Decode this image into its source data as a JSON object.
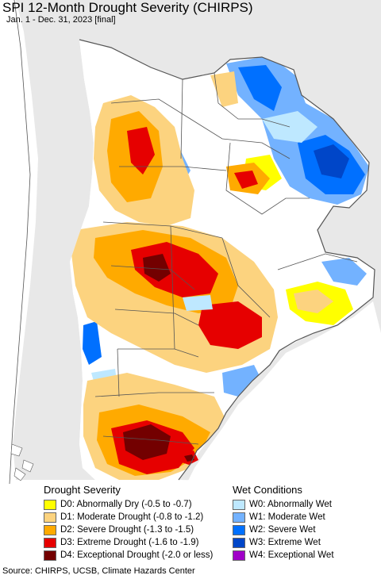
{
  "title": "SPI 12-Month Drought Severity (CHIRPS)",
  "subtitle": "Jan. 1 - Dec. 31, 2023 [final]",
  "legend": {
    "drought": {
      "heading": "Drought Severity",
      "items": [
        {
          "label": "D0: Abnormally Dry (-0.5 to -0.7)",
          "color": "#ffff00"
        },
        {
          "label": "D1: Moderate Drought (-0.8 to -1.2)",
          "color": "#fcd37f"
        },
        {
          "label": "D2: Severe Drought (-1.3 to -1.5)",
          "color": "#ffaa00"
        },
        {
          "label": "D3: Extreme Drought (-1.6 to -1.9)",
          "color": "#e60000"
        },
        {
          "label": "D4: Exceptional Drought (-2.0 or less)",
          "color": "#730000"
        }
      ]
    },
    "wet": {
      "heading": "Wet Conditions",
      "items": [
        {
          "label": "W0: Abnormally Wet",
          "color": "#bee8ff"
        },
        {
          "label": "W1: Moderate Wet",
          "color": "#73b2ff"
        },
        {
          "label": "W2: Severe Wet",
          "color": "#0070ff"
        },
        {
          "label": "W3: Extreme Wet",
          "color": "#0046c8"
        },
        {
          "label": "W4: Exceptional Wet",
          "color": "#a000c8"
        }
      ]
    }
  },
  "source": "Source: CHIRPS, UCSB, Climate Hazards Center",
  "colors": {
    "ocean": "#ffffff",
    "outside_land": "#e8e8e8",
    "region_base": "#ffffff",
    "border": "#555555"
  }
}
